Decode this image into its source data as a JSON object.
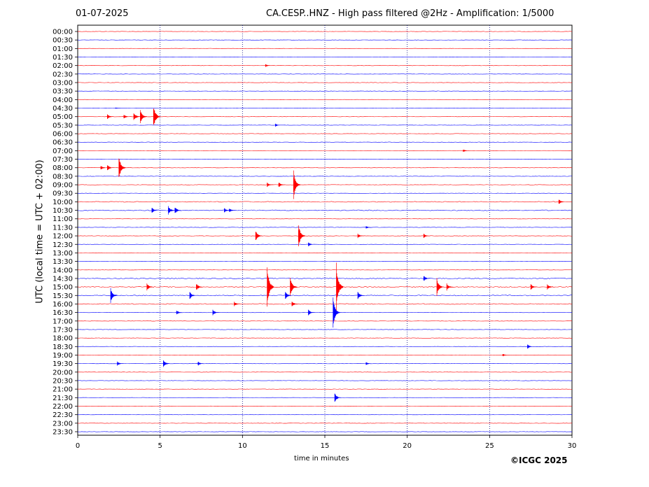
{
  "header": {
    "date": "01-07-2025",
    "title": "CA.CESP..HNZ - High pass filtered @2Hz - Amplification: 1/5000"
  },
  "footer": {
    "copyright": "©ICGC 2025"
  },
  "chart_data": {
    "type": "line",
    "title": "CA.CESP..HNZ - High pass filtered @2Hz - Amplification: 1/5000",
    "xlabel": "time in minutes",
    "ylabel": "UTC (local time = UTC + 02:00)",
    "xlim": [
      0,
      30
    ],
    "xticks": [
      0,
      5,
      10,
      15,
      20,
      25,
      30
    ],
    "grid": "vertical dotted lines at 5-minute intervals",
    "trace_colors": [
      "#ff0000",
      "#0000ff"
    ],
    "rows": [
      "00:00",
      "00:30",
      "01:00",
      "01:30",
      "02:00",
      "02:30",
      "03:00",
      "03:30",
      "04:00",
      "04:30",
      "05:00",
      "05:30",
      "06:00",
      "06:30",
      "07:00",
      "07:30",
      "08:00",
      "08:30",
      "09:00",
      "09:30",
      "10:00",
      "10:30",
      "11:00",
      "11:30",
      "12:00",
      "12:30",
      "13:00",
      "13:30",
      "14:00",
      "14:30",
      "15:00",
      "15:30",
      "16:00",
      "16:30",
      "17:00",
      "17:30",
      "18:00",
      "18:30",
      "19:00",
      "19:30",
      "20:00",
      "20:30",
      "21:00",
      "21:30",
      "22:00",
      "22:30",
      "23:00",
      "23:30"
    ],
    "events": [
      {
        "row": "02:00",
        "minute": 11.4,
        "amplitude": 0.2
      },
      {
        "row": "04:30",
        "minute": 2.3,
        "amplitude": 0.1
      },
      {
        "row": "05:00",
        "minute": 1.8,
        "amplitude": 0.4
      },
      {
        "row": "05:00",
        "minute": 2.8,
        "amplitude": 0.3
      },
      {
        "row": "05:00",
        "minute": 3.4,
        "amplitude": 0.6
      },
      {
        "row": "05:00",
        "minute": 3.8,
        "amplitude": 1.0
      },
      {
        "row": "05:00",
        "minute": 4.6,
        "amplitude": 1.6
      },
      {
        "row": "05:30",
        "minute": 12.0,
        "amplitude": 0.2
      },
      {
        "row": "07:00",
        "minute": 23.4,
        "amplitude": 0.2
      },
      {
        "row": "08:00",
        "minute": 1.4,
        "amplitude": 0.3
      },
      {
        "row": "08:00",
        "minute": 1.8,
        "amplitude": 0.4
      },
      {
        "row": "08:00",
        "minute": 2.5,
        "amplitude": 1.5
      },
      {
        "row": "09:00",
        "minute": 11.5,
        "amplitude": 0.3
      },
      {
        "row": "09:00",
        "minute": 12.2,
        "amplitude": 0.4
      },
      {
        "row": "09:00",
        "minute": 13.1,
        "amplitude": 1.9
      },
      {
        "row": "10:00",
        "minute": 29.2,
        "amplitude": 0.4
      },
      {
        "row": "10:30",
        "minute": 4.5,
        "amplitude": 0.4
      },
      {
        "row": "10:30",
        "minute": 5.5,
        "amplitude": 0.6
      },
      {
        "row": "10:30",
        "minute": 5.9,
        "amplitude": 0.5
      },
      {
        "row": "10:30",
        "minute": 8.9,
        "amplitude": 0.3
      },
      {
        "row": "10:30",
        "minute": 9.2,
        "amplitude": 0.3
      },
      {
        "row": "11:30",
        "minute": 17.5,
        "amplitude": 0.2
      },
      {
        "row": "12:00",
        "minute": 10.8,
        "amplitude": 0.7
      },
      {
        "row": "12:00",
        "minute": 13.4,
        "amplitude": 1.5
      },
      {
        "row": "12:00",
        "minute": 17.0,
        "amplitude": 0.3
      },
      {
        "row": "12:00",
        "minute": 21.0,
        "amplitude": 0.3
      },
      {
        "row": "12:30",
        "minute": 14.0,
        "amplitude": 0.3
      },
      {
        "row": "14:30",
        "minute": 21.0,
        "amplitude": 0.4
      },
      {
        "row": "15:00",
        "minute": 4.2,
        "amplitude": 0.5
      },
      {
        "row": "15:00",
        "minute": 7.2,
        "amplitude": 0.5
      },
      {
        "row": "15:00",
        "minute": 11.5,
        "amplitude": 2.8
      },
      {
        "row": "15:00",
        "minute": 12.9,
        "amplitude": 1.3
      },
      {
        "row": "15:00",
        "minute": 15.7,
        "amplitude": 3.2
      },
      {
        "row": "15:00",
        "minute": 21.8,
        "amplitude": 1.2
      },
      {
        "row": "15:00",
        "minute": 22.4,
        "amplitude": 0.5
      },
      {
        "row": "15:00",
        "minute": 27.5,
        "amplitude": 0.4
      },
      {
        "row": "15:00",
        "minute": 28.5,
        "amplitude": 0.4
      },
      {
        "row": "15:30",
        "minute": 2.0,
        "amplitude": 1.0
      },
      {
        "row": "15:30",
        "minute": 6.8,
        "amplitude": 0.5
      },
      {
        "row": "15:30",
        "minute": 12.6,
        "amplitude": 0.6
      },
      {
        "row": "15:30",
        "minute": 17.0,
        "amplitude": 0.5
      },
      {
        "row": "16:00",
        "minute": 9.5,
        "amplitude": 0.3
      },
      {
        "row": "16:00",
        "minute": 13.0,
        "amplitude": 0.4
      },
      {
        "row": "16:30",
        "minute": 6.0,
        "amplitude": 0.3
      },
      {
        "row": "16:30",
        "minute": 8.2,
        "amplitude": 0.4
      },
      {
        "row": "16:30",
        "minute": 14.0,
        "amplitude": 0.4
      },
      {
        "row": "16:30",
        "minute": 15.5,
        "amplitude": 2.0
      },
      {
        "row": "18:30",
        "minute": 27.3,
        "amplitude": 0.3
      },
      {
        "row": "19:00",
        "minute": 25.8,
        "amplitude": 0.2
      },
      {
        "row": "19:30",
        "minute": 2.4,
        "amplitude": 0.3
      },
      {
        "row": "19:30",
        "minute": 5.2,
        "amplitude": 0.5
      },
      {
        "row": "19:30",
        "minute": 7.3,
        "amplitude": 0.3
      },
      {
        "row": "19:30",
        "minute": 17.5,
        "amplitude": 0.2
      },
      {
        "row": "21:30",
        "minute": 15.6,
        "amplitude": 0.6
      }
    ]
  }
}
